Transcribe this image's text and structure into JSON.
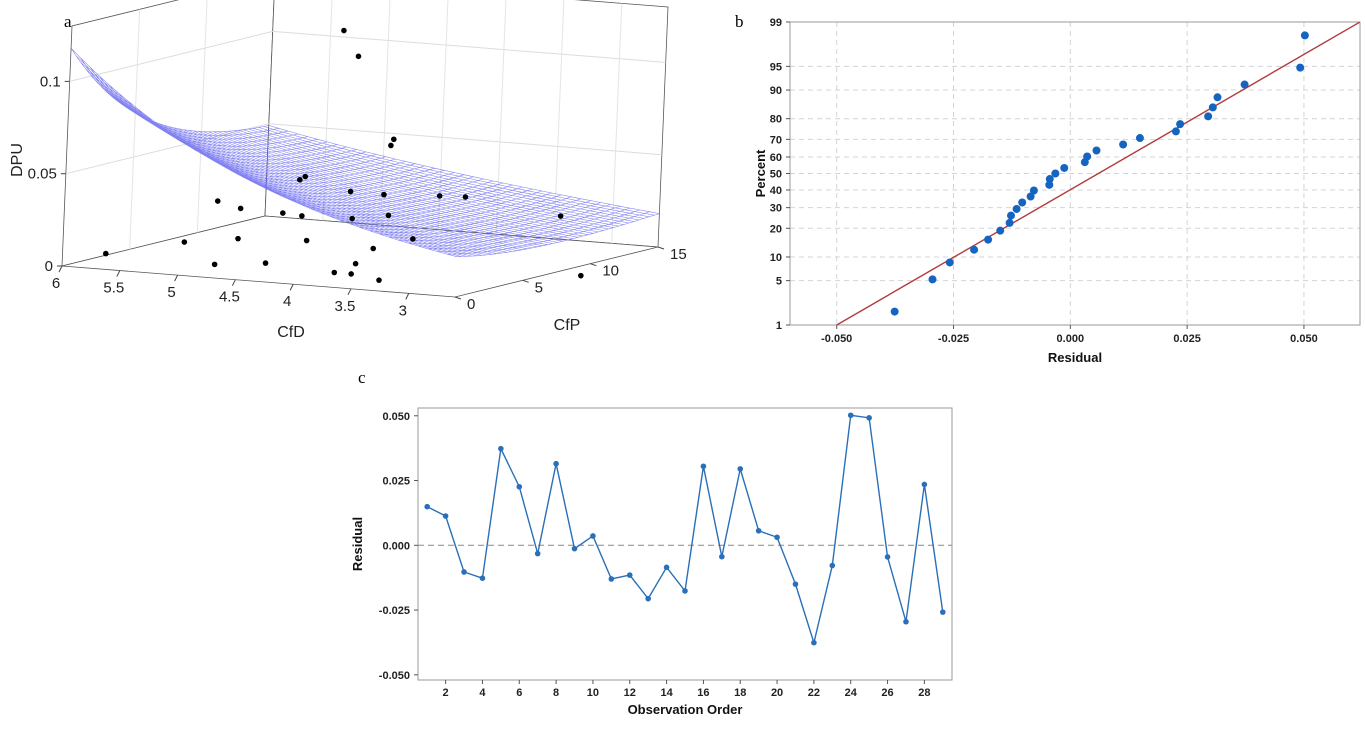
{
  "panels": {
    "a": {
      "label": "a",
      "chart_data": {
        "type": "surface3d",
        "zlabel": "DPU",
        "xlabel": "CfD",
        "ylabel": "CfP",
        "z_ticks": [
          "0",
          "0.05",
          "0.1"
        ],
        "x_ticks": [
          "6",
          "5.5",
          "5",
          "4.5",
          "4",
          "3.5",
          "3"
        ],
        "y_ticks": [
          "0",
          "5",
          "10",
          "15"
        ],
        "xlim": [
          2.6,
          6
        ],
        "ylim": [
          0,
          15
        ],
        "zlim": [
          0,
          0.13
        ],
        "surface_color": "#6b6bf0",
        "point_color": "#000000",
        "points": [
          {
            "cfd": 4.0,
            "cfp": 3.0,
            "dpu": 0.132
          },
          {
            "cfd": 3.9,
            "cfp": 3.3,
            "dpu": 0.118
          },
          {
            "cfd": 3.6,
            "cfp": 3.6,
            "dpu": 0.074
          },
          {
            "cfd": 3.6,
            "cfp": 3.4,
            "dpu": 0.071
          },
          {
            "cfd": 4.5,
            "cfp": 4.5,
            "dpu": 0.046
          },
          {
            "cfd": 4.5,
            "cfp": 4.9,
            "dpu": 0.047
          },
          {
            "cfd": 4.0,
            "cfp": 4.0,
            "dpu": 0.043
          },
          {
            "cfd": 3.7,
            "cfp": 3.9,
            "dpu": 0.043
          },
          {
            "cfd": 3.3,
            "cfp": 4.6,
            "dpu": 0.043
          },
          {
            "cfd": 3.1,
            "cfp": 4.8,
            "dpu": 0.043
          },
          {
            "cfd": 5.2,
            "cfp": 4.5,
            "dpu": 0.031
          },
          {
            "cfd": 5.0,
            "cfp": 4.5,
            "dpu": 0.028
          },
          {
            "cfd": 4.6,
            "cfp": 4.2,
            "dpu": 0.028
          },
          {
            "cfd": 4.4,
            "cfp": 3.9,
            "dpu": 0.028
          },
          {
            "cfd": 4.0,
            "cfp": 4.2,
            "dpu": 0.028
          },
          {
            "cfd": 3.7,
            "cfp": 4.3,
            "dpu": 0.031
          },
          {
            "cfd": 2.7,
            "cfp": 8.5,
            "dpu": 0.028
          },
          {
            "cfd": 4.7,
            "cfp": 1.8,
            "dpu": 0.018
          },
          {
            "cfd": 4.2,
            "cfp": 2.6,
            "dpu": 0.018
          },
          {
            "cfd": 3.6,
            "cfp": 2.4,
            "dpu": 0.017
          },
          {
            "cfd": 3.4,
            "cfp": 3.6,
            "dpu": 0.021
          },
          {
            "cfd": 5.3,
            "cfp": 3.0,
            "dpu": 0.011
          },
          {
            "cfd": 4.5,
            "cfp": 2.2,
            "dpu": 0.005
          },
          {
            "cfd": 5.8,
            "cfp": 1.5,
            "dpu": 0.005
          },
          {
            "cfd": 4.8,
            "cfp": 1.0,
            "dpu": 0.005
          },
          {
            "cfd": 3.7,
            "cfp": 1.7,
            "dpu": 0.004
          },
          {
            "cfd": 3.7,
            "cfp": 2.0,
            "dpu": 0.009
          },
          {
            "cfd": 3.8,
            "cfp": 1.3,
            "dpu": 0.005
          },
          {
            "cfd": 3.4,
            "cfp": 1.2,
            "dpu": 0.003
          },
          {
            "cfd": 2.1,
            "cfp": 5.0,
            "dpu": 0.005
          }
        ]
      }
    },
    "b": {
      "label": "b",
      "chart_data": {
        "type": "scatter",
        "subtype": "normal-probability",
        "xlabel": "Residual",
        "ylabel": "Percent",
        "xlim": [
          -0.06,
          0.062
        ],
        "ylim": [
          1,
          99
        ],
        "x_ticks": [
          "-0.050",
          "-0.025",
          "0.000",
          "0.025",
          "0.050"
        ],
        "x_tick_values": [
          -0.05,
          -0.025,
          0,
          0.025,
          0.05
        ],
        "y_ticks": [
          "1",
          "5",
          "10",
          "20",
          "30",
          "40",
          "50",
          "60",
          "70",
          "80",
          "90",
          "95",
          "99"
        ],
        "y_tick_values": [
          1,
          5,
          10,
          20,
          30,
          40,
          50,
          60,
          70,
          80,
          90,
          95,
          99
        ],
        "point_color": "#1565c0",
        "line_color": "#b23a3a",
        "fit_line": {
          "x": [
            -0.05,
            0.062
          ],
          "y": [
            1,
            99
          ]
        },
        "points": [
          {
            "x": -0.0376,
            "y": 1.7
          },
          {
            "x": -0.0295,
            "y": 5.2
          },
          {
            "x": -0.0258,
            "y": 8.6
          },
          {
            "x": -0.0206,
            "y": 12.1
          },
          {
            "x": -0.0176,
            "y": 15.5
          },
          {
            "x": -0.015,
            "y": 19.0
          },
          {
            "x": -0.013,
            "y": 22.4
          },
          {
            "x": -0.0127,
            "y": 25.9
          },
          {
            "x": -0.0115,
            "y": 29.3
          },
          {
            "x": -0.0103,
            "y": 32.8
          },
          {
            "x": -0.0085,
            "y": 36.2
          },
          {
            "x": -0.0078,
            "y": 39.7
          },
          {
            "x": -0.0045,
            "y": 43.1
          },
          {
            "x": -0.0044,
            "y": 46.6
          },
          {
            "x": -0.0032,
            "y": 50.0
          },
          {
            "x": -0.0013,
            "y": 53.4
          },
          {
            "x": 0.0031,
            "y": 56.9
          },
          {
            "x": 0.0036,
            "y": 60.3
          },
          {
            "x": 0.0056,
            "y": 63.8
          },
          {
            "x": 0.0113,
            "y": 67.2
          },
          {
            "x": 0.0149,
            "y": 70.7
          },
          {
            "x": 0.0226,
            "y": 74.1
          },
          {
            "x": 0.0235,
            "y": 77.6
          },
          {
            "x": 0.0295,
            "y": 81.0
          },
          {
            "x": 0.0305,
            "y": 84.5
          },
          {
            "x": 0.0315,
            "y": 87.9
          },
          {
            "x": 0.0373,
            "y": 91.4
          },
          {
            "x": 0.0492,
            "y": 94.8
          },
          {
            "x": 0.0502,
            "y": 98.3
          }
        ]
      }
    },
    "c": {
      "label": "c",
      "chart_data": {
        "type": "line",
        "xlabel": "Observation Order",
        "ylabel": "Residual",
        "xlim": [
          0.5,
          29.5
        ],
        "ylim": [
          -0.052,
          0.053
        ],
        "x_ticks": [
          "2",
          "4",
          "6",
          "8",
          "10",
          "12",
          "14",
          "16",
          "18",
          "20",
          "22",
          "24",
          "26",
          "28"
        ],
        "x_tick_values": [
          2,
          4,
          6,
          8,
          10,
          12,
          14,
          16,
          18,
          20,
          22,
          24,
          26,
          28
        ],
        "y_ticks": [
          "0.050",
          "0.025",
          "0.000",
          "-0.025",
          "-0.050"
        ],
        "y_tick_values": [
          0.05,
          0.025,
          0,
          -0.025,
          -0.05
        ],
        "reference_line": 0,
        "line_color": "#2a6fb8",
        "x": [
          1,
          2,
          3,
          4,
          5,
          6,
          7,
          8,
          9,
          10,
          11,
          12,
          13,
          14,
          15,
          16,
          17,
          18,
          19,
          20,
          21,
          22,
          23,
          24,
          25,
          26,
          27,
          28,
          29
        ],
        "values": [
          0.0149,
          0.0113,
          -0.0103,
          -0.0127,
          0.0373,
          0.0226,
          -0.0032,
          0.0315,
          -0.0013,
          0.0036,
          -0.013,
          -0.0115,
          -0.0206,
          -0.0085,
          -0.0176,
          0.0305,
          -0.0044,
          0.0295,
          0.0056,
          0.0031,
          -0.015,
          -0.0376,
          -0.0078,
          0.0502,
          0.0492,
          -0.0045,
          -0.0295,
          0.0235,
          -0.0258
        ]
      }
    }
  }
}
